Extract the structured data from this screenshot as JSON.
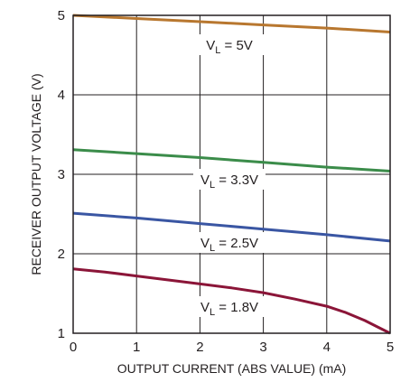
{
  "chart_data": {
    "type": "line",
    "title": "",
    "xlabel": "OUTPUT CURRENT (ABS VALUE) (mA)",
    "ylabel": "RECEIVER OUTPUT VOLTAGE (V)",
    "xlim": [
      0,
      5
    ],
    "ylim": [
      1,
      5
    ],
    "xticks": [
      "0",
      "1",
      "2",
      "3",
      "4",
      "5"
    ],
    "yticks": [
      "1",
      "2",
      "3",
      "4",
      "5"
    ],
    "grid": true,
    "legend": "none (inline curve labels)",
    "series": [
      {
        "name": "V_L = 5V",
        "label_main": "V",
        "label_sub": "L",
        "label_rest": " = 5V",
        "color": "#b8772f",
        "x": [
          0,
          1,
          2,
          3,
          4,
          5
        ],
        "y": [
          5.0,
          4.96,
          4.92,
          4.88,
          4.84,
          4.79
        ]
      },
      {
        "name": "V_L = 3.3V",
        "label_main": "V",
        "label_sub": "L",
        "label_rest": " = 3.3V",
        "color": "#3b8c4a",
        "x": [
          0,
          1,
          2,
          3,
          4,
          5
        ],
        "y": [
          3.31,
          3.26,
          3.21,
          3.15,
          3.09,
          3.04
        ]
      },
      {
        "name": "V_L = 2.5V",
        "label_main": "V",
        "label_sub": "L",
        "label_rest": " = 2.5V",
        "color": "#3a56a3",
        "x": [
          0,
          1,
          2,
          3,
          4,
          5
        ],
        "y": [
          2.51,
          2.45,
          2.38,
          2.31,
          2.24,
          2.16
        ]
      },
      {
        "name": "V_L = 1.8V",
        "label_main": "V",
        "label_sub": "L",
        "label_rest": " = 1.8V",
        "color": "#8b1538",
        "x": [
          0,
          0.5,
          1,
          1.5,
          2,
          2.5,
          3,
          3.5,
          4,
          4.3,
          4.6,
          4.8,
          5.0
        ],
        "y": [
          1.81,
          1.77,
          1.72,
          1.67,
          1.62,
          1.57,
          1.51,
          1.43,
          1.34,
          1.26,
          1.16,
          1.08,
          1.0
        ]
      }
    ]
  }
}
